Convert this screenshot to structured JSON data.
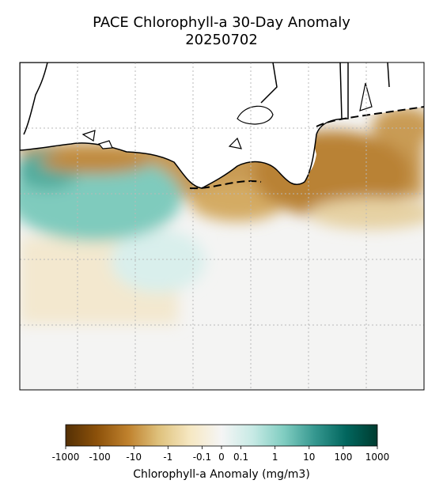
{
  "chart_data": {
    "type": "map",
    "title": "PACE Chlorophyll-a 30-Day Anomaly",
    "subtitle": "20250702",
    "colorbar": {
      "label": "Chlorophyll-a Anomaly (mg/m3)",
      "scale": "symlog",
      "linthresh": 0.1,
      "lim": [
        -1000,
        1000
      ],
      "ticks": [
        -1000,
        -100,
        -10,
        -1,
        -0.1,
        0,
        0.1,
        1,
        10,
        100,
        1000
      ],
      "colors": [
        "#543005",
        "#8c510a",
        "#bf812d",
        "#dfc27d",
        "#f6e8c3",
        "#f5f5f5",
        "#c7eae5",
        "#80cdc1",
        "#35978f",
        "#01665e",
        "#003c30"
      ]
    }
  }
}
